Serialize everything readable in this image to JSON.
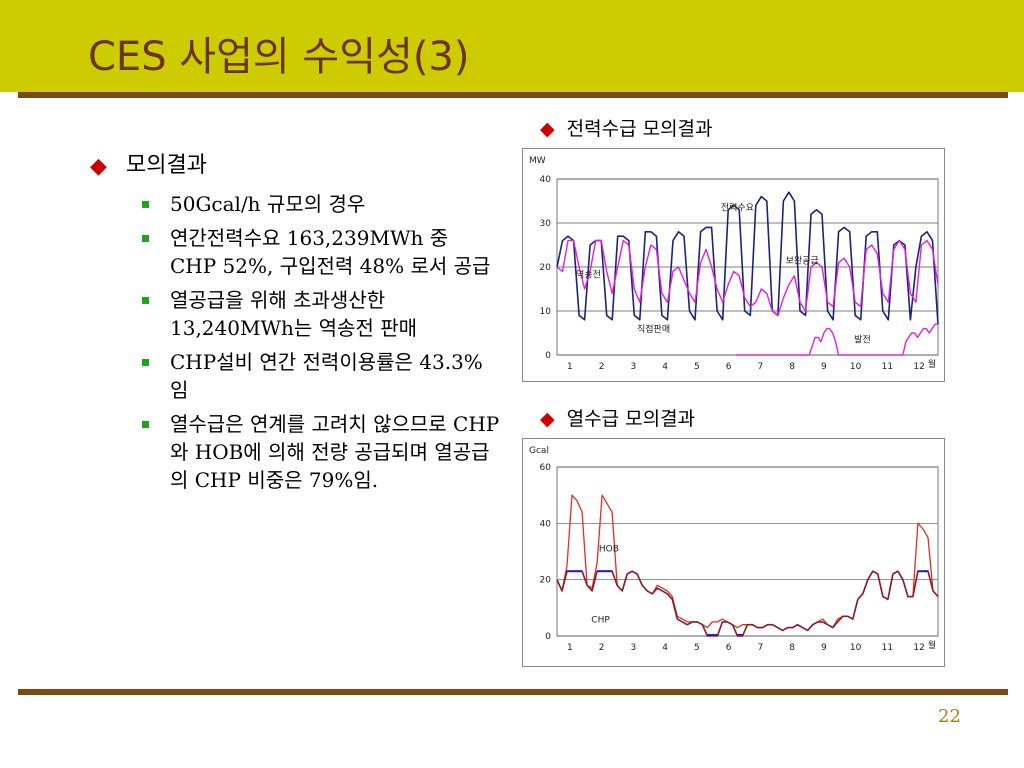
{
  "title": "CES 사업의 수익성(3)",
  "page_number": "22",
  "left": {
    "heading": "모의결과",
    "items": [
      "50Gcal/h 규모의 경우",
      "연간전력수요 163,239MWh 중 CHP 52%, 구입전력 48% 로서 공급",
      "열공급을 위해 초과생산한 13,240MWh는 역송전 판매",
      "CHP설비 연간 전력이용률은 43.3%임",
      "열수급은 연계를 고려치 않으므로 CHP와 HOB에 의해 전량 공급되며 열공급의 CHP 비중은 79%임."
    ]
  },
  "colors": {
    "title_bar": "#cccc00",
    "title_text": "#6b3410",
    "rule": "#7a4a10",
    "bullet_diamond": "#cc0000",
    "bullet_square": "#22a022",
    "demand_line": "#1a237e",
    "supply_line": "#e020e0",
    "hob_line": "#e03020",
    "chp_line": "#8b1a2a",
    "chp_flat": "#2020c0"
  },
  "chart_data": [
    {
      "type": "line",
      "section_title": "전력수급 모의결과",
      "unit_label": "MW",
      "x_ticks": [
        "1",
        "2",
        "3",
        "4",
        "5",
        "6",
        "7",
        "8",
        "9",
        "10",
        "11",
        "12"
      ],
      "x_unit": "월",
      "ylim": [
        0,
        40
      ],
      "y_ticks": [
        0,
        10,
        20,
        30,
        40
      ],
      "annotations": [
        "전력수요",
        "보완공급",
        "역송전",
        "직접판매",
        "발전"
      ],
      "series": [
        {
          "name": "전력수요",
          "values": [
            20,
            26,
            27,
            26,
            9,
            8,
            25,
            26,
            26,
            9,
            8,
            27,
            27,
            26,
            9,
            8,
            28,
            28,
            27,
            9,
            8,
            26,
            28,
            27,
            10,
            8,
            28,
            29,
            29,
            10,
            8,
            33,
            34,
            33,
            10,
            9,
            34,
            36,
            35,
            10,
            9,
            35,
            37,
            35,
            10,
            9,
            32,
            33,
            32,
            10,
            8,
            28,
            29,
            28,
            9,
            8,
            27,
            28,
            28,
            10,
            8,
            25,
            26,
            25,
            8,
            20,
            27,
            28,
            26,
            7
          ]
        },
        {
          "name": "보완공급",
          "values": [
            20,
            19,
            26,
            26,
            20,
            15,
            19,
            26,
            26,
            19,
            14,
            20,
            26,
            25,
            15,
            12,
            20,
            25,
            24,
            14,
            12,
            19,
            20,
            17,
            14,
            12,
            21,
            24,
            20,
            15,
            12,
            16,
            19,
            18,
            13,
            11,
            12,
            15,
            14,
            10,
            9,
            13,
            16,
            18,
            12,
            10,
            20,
            21,
            20,
            12,
            11,
            21,
            22,
            20,
            12,
            11,
            24,
            25,
            23,
            14,
            12,
            24,
            26,
            24,
            14,
            12,
            25,
            26,
            24,
            16
          ]
        },
        {
          "name": "직접판매",
          "values": [
            0,
            0,
            0,
            0,
            0,
            0,
            0,
            0,
            0,
            0,
            0,
            0,
            0,
            0,
            0,
            0,
            0,
            0,
            0,
            0,
            0,
            0,
            0,
            0,
            0,
            0,
            2,
            4,
            4,
            3,
            5,
            6,
            6,
            5,
            3,
            0,
            0,
            0,
            0,
            0,
            0,
            0,
            0,
            0,
            0,
            0,
            0,
            0,
            0,
            0,
            0,
            0,
            0,
            0,
            0,
            0,
            0,
            0,
            3,
            4,
            5,
            5,
            4,
            5,
            6,
            6,
            5,
            6,
            7,
            7
          ]
        }
      ]
    },
    {
      "type": "line",
      "section_title": "열수급 모의결과",
      "unit_label": "Gcal",
      "x_ticks": [
        "1",
        "2",
        "3",
        "4",
        "5",
        "6",
        "7",
        "8",
        "9",
        "10",
        "11",
        "12"
      ],
      "x_unit": "월",
      "ylim": [
        0,
        60
      ],
      "y_ticks": [
        0,
        20,
        40,
        60
      ],
      "annotations": [
        "HOB",
        "CHP"
      ],
      "series": [
        {
          "name": "HOB",
          "values": [
            20,
            16,
            25,
            50,
            48,
            44,
            18,
            17,
            26,
            50,
            47,
            44,
            18,
            16,
            22,
            23,
            22,
            18,
            16,
            15,
            18,
            17,
            16,
            14,
            7,
            6,
            5,
            5,
            5,
            4,
            3,
            5,
            5,
            6,
            5,
            4,
            3,
            4,
            4,
            4,
            3,
            3,
            4,
            4,
            3,
            2,
            3,
            3,
            4,
            3,
            2,
            4,
            5,
            6,
            4,
            3,
            6,
            7,
            7,
            6,
            13,
            15,
            20,
            23,
            22,
            14,
            13,
            22,
            23,
            20,
            14,
            14,
            40,
            38,
            35,
            16,
            14
          ]
        },
        {
          "name": "CHP",
          "values": [
            20,
            16,
            23,
            23,
            23,
            23,
            18,
            16,
            23,
            23,
            23,
            23,
            18,
            16,
            22,
            23,
            22,
            18,
            16,
            15,
            17,
            16,
            15,
            13,
            6,
            5,
            4,
            5,
            5,
            4,
            0,
            0,
            0,
            5,
            5,
            4,
            0,
            0,
            4,
            4,
            3,
            3,
            4,
            4,
            3,
            2,
            3,
            3,
            4,
            3,
            2,
            4,
            5,
            5,
            4,
            3,
            5,
            7,
            7,
            6,
            13,
            15,
            20,
            23,
            22,
            14,
            13,
            22,
            23,
            20,
            14,
            14,
            23,
            23,
            23,
            16,
            14
          ]
        }
      ]
    }
  ]
}
